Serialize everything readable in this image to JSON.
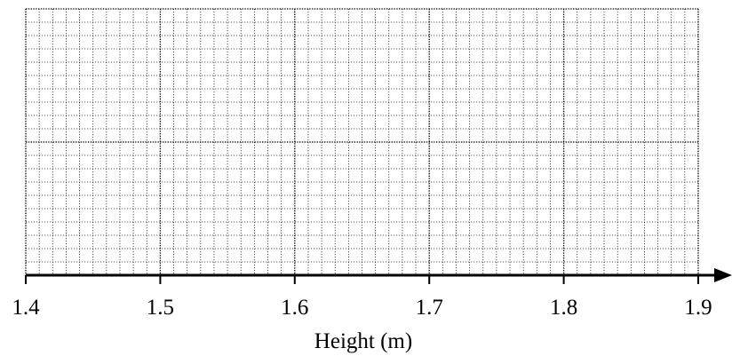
{
  "chart_data": {
    "type": "histogram",
    "title": "",
    "xlabel": "Height (m)",
    "ylabel": "",
    "xlim": [
      1.4,
      1.9
    ],
    "x_ticks": [
      "1.4",
      "1.5",
      "1.6",
      "1.7",
      "1.8",
      "1.9"
    ],
    "grid": true,
    "series": [],
    "axis_color": "#000000",
    "grid_color": "#000000"
  }
}
